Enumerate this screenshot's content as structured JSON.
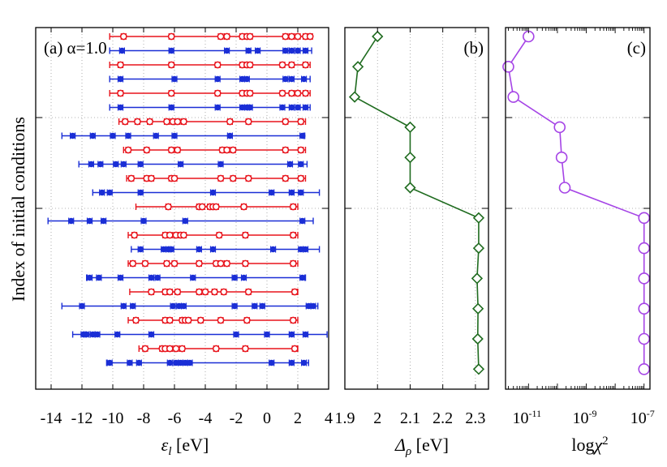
{
  "ylabel": "Index of initial conditions",
  "colors": {
    "red": "#e8141c",
    "blue": "#1a2ed6",
    "green": "#1f6b1f",
    "purple": "#a544e6"
  },
  "chart_data": [
    {
      "type": "scatter",
      "panel_label": "(a) α=1.0",
      "xlabel": "ε_l [eV]",
      "xlim": [
        -15,
        4
      ],
      "xticks": [
        -14,
        -12,
        -10,
        -8,
        -6,
        -4,
        -2,
        0,
        2,
        4
      ],
      "xtick_labels": [
        "-14",
        "-12",
        "-10",
        "-8",
        "-6",
        "-4",
        "-2",
        "0",
        "2",
        "4"
      ],
      "grid": true,
      "series": [
        {
          "color": "red",
          "marker": "open-circle",
          "rows": [
            {
              "index": 1,
              "center_values": [
                -9.3,
                -6.2,
                -3,
                -2.6,
                -1.6,
                -1.3,
                -1.1,
                1.2,
                1.6,
                2.0,
                2.5,
                2.8
              ],
              "min": -10.2,
              "max": 2.9
            },
            {
              "index": 3,
              "center_values": [
                -9.5,
                -6.2,
                -3.2,
                -1.6,
                -1.3,
                -1.1,
                1.0,
                1.6,
                2.5
              ],
              "min": -10.2,
              "max": 2.8
            },
            {
              "index": 5,
              "center_values": [
                -9.5,
                -6.2,
                -3.2,
                -1.6,
                -1.3,
                -1.1,
                1.0,
                1.6,
                2.0,
                2.5
              ],
              "min": -10.2,
              "max": 2.8
            },
            {
              "index": 7,
              "center_values": [
                -9.2,
                -8.4,
                -7.6,
                -6.5,
                -6.1,
                -5.8,
                -5.4,
                -2.4,
                -1.2,
                1.2,
                2.2
              ],
              "min": -9.6,
              "max": 2.5
            },
            {
              "index": 9,
              "center_values": [
                -9.0,
                -7.8,
                -6.2,
                -5.8,
                -2.9,
                -2.6,
                -2.2,
                1.2,
                2.2
              ],
              "min": -9.3,
              "max": 2.5
            },
            {
              "index": 11,
              "center_values": [
                -8.8,
                -7.8,
                -7.5,
                -6.2,
                -6.0,
                -3.0,
                -2.2,
                -1.2,
                1.2,
                2.2
              ],
              "min": -9.1,
              "max": 2.5
            },
            {
              "index": 13,
              "center_values": [
                -6.4,
                -4.4,
                -4.2,
                -3.7,
                -3.5,
                -3.3,
                -1.5,
                1.7
              ],
              "min": -8.5,
              "max": 2.0
            },
            {
              "index": 15,
              "center_values": [
                -8.6,
                -6.6,
                -6.3,
                -5.9,
                -5.6,
                -5.4,
                -3.1,
                -1.4,
                1.7
              ],
              "min": -9.0,
              "max": 2.0
            },
            {
              "index": 17,
              "center_values": [
                -8.7,
                -7.9,
                -6.5,
                -6.0,
                -4.4,
                -3.3,
                -3.0,
                -2.6,
                -1.4,
                1.7
              ],
              "min": -9.0,
              "max": 2.0
            },
            {
              "index": 19,
              "center_values": [
                -7.5,
                -6.6,
                -6.3,
                -5.8,
                -4.4,
                -4.0,
                -3.4,
                -2.8,
                -1.2,
                1.8
              ],
              "min": -8.9,
              "max": 2.0
            },
            {
              "index": 21,
              "center_values": [
                -8.5,
                -6.6,
                -6.3,
                -5.5,
                -5.3,
                -5.1,
                -4.3,
                -3.0,
                -1.3,
                1.7
              ],
              "min": -9.0,
              "max": 2.0
            },
            {
              "index": 23,
              "center_values": [
                -7.9,
                -6.8,
                -6.6,
                -6.3,
                -5.9,
                -5.5,
                -3.3,
                -1.4,
                1.8
              ],
              "min": -8.3,
              "max": 2.0
            }
          ]
        },
        {
          "color": "blue",
          "marker": "filled-circle",
          "rows": [
            {
              "index": 2,
              "center_values": [
                -9.4,
                -6.2,
                -2.6,
                -1.2,
                -0.6,
                1.2,
                1.6,
                2.0,
                2.5
              ],
              "min": -10.2,
              "max": 2.9
            },
            {
              "index": 4,
              "center_values": [
                -9.5,
                -6.0,
                -3.2,
                -1.6,
                -1.3,
                1.2,
                1.6,
                2.4
              ],
              "min": -10.2,
              "max": 2.8
            },
            {
              "index": 6,
              "center_values": [
                -9.5,
                -6.2,
                -3.2,
                -1.6,
                -1.3,
                -1.1,
                1.0,
                1.6,
                2.0,
                2.5
              ],
              "min": -10.2,
              "max": 2.8
            },
            {
              "index": 8,
              "center_values": [
                -12.6,
                -11.3,
                -10.0,
                -9.0,
                -7.2,
                -6.0,
                -2.4,
                2.3
              ],
              "min": -13.3,
              "max": 2.4
            },
            {
              "index": 10,
              "center_values": [
                -11.4,
                -10.8,
                -9.8,
                -9.3,
                -8.2,
                -5.6,
                -3.0,
                1.5,
                2.2
              ],
              "min": -12.2,
              "max": 2.6
            },
            {
              "index": 12,
              "center_values": [
                -10.7,
                -10.2,
                -8.2,
                -3.5,
                0.3,
                1.6,
                2.2
              ],
              "min": -11.3,
              "max": 3.4
            },
            {
              "index": 14,
              "center_values": [
                -12.7,
                -11.5,
                -10.6,
                -8.0,
                -5.3,
                2.3
              ],
              "min": -14.2,
              "max": 3.0
            },
            {
              "index": 16,
              "center_values": [
                -8.2,
                -6.7,
                -6.4,
                -6.2,
                -4.4,
                -3.5,
                0.4,
                2.2,
                2.5
              ],
              "min": -8.8,
              "max": 3.4
            },
            {
              "index": 18,
              "center_values": [
                -11.5,
                -10.9,
                -9.5,
                -7.5,
                -7.1,
                -4.8,
                -2.1,
                -1.5,
                2.3
              ],
              "min": -11.7,
              "max": 2.5
            },
            {
              "index": 20,
              "center_values": [
                -12.0,
                -9.3,
                -8.7,
                -6.1,
                -5.7,
                -5.4,
                -2.1,
                -0.8,
                -0.3,
                2.7,
                3.0
              ],
              "min": -13.3,
              "max": 3.3
            },
            {
              "index": 22,
              "center_values": [
                -11.9,
                -11.7,
                -11.3,
                -11.0,
                -9.7,
                -7.5,
                -2.0,
                0.0,
                1.6,
                2.5
              ],
              "min": -12.6,
              "max": 3.9
            },
            {
              "index": 24,
              "center_values": [
                -10.2,
                -8.9,
                -8.3,
                -6.3,
                -5.9,
                -5.6,
                -5.3,
                -5.0,
                0.3,
                1.6,
                2.4
              ],
              "min": -10.4,
              "max": 2.7
            }
          ]
        }
      ]
    },
    {
      "type": "line",
      "panel_label": "(b)",
      "xlabel": "Δ_ρ [eV]",
      "xlim": [
        1.9,
        2.34
      ],
      "xticks": [
        1.9,
        2.0,
        2.1,
        2.2,
        2.3
      ],
      "xtick_labels": [
        "1.9",
        "2",
        "2.1",
        "2.2",
        "2.3"
      ],
      "marker": "open-diamond",
      "color": "green",
      "points": [
        {
          "index": 1,
          "value": 2.0
        },
        {
          "index": 2,
          "value": 1.94
        },
        {
          "index": 3,
          "value": 1.93
        },
        {
          "index": 4,
          "value": 2.1
        },
        {
          "index": 5,
          "value": 2.1
        },
        {
          "index": 6,
          "value": 2.1
        },
        {
          "index": 7,
          "value": 2.31
        },
        {
          "index": 8,
          "value": 2.31
        },
        {
          "index": 9,
          "value": 2.305
        },
        {
          "index": 10,
          "value": 2.308
        },
        {
          "index": 11,
          "value": 2.307
        },
        {
          "index": 12,
          "value": 2.31
        }
      ]
    },
    {
      "type": "line",
      "panel_label": "(c)",
      "xlabel": "logχ²",
      "xscale": "log",
      "xlim": [
        1.6e-12,
        1.6e-07
      ],
      "xticks": [
        1e-11,
        1e-09,
        1e-07
      ],
      "xtick_labels": [
        {
          "base": "10",
          "exp": "-11"
        },
        {
          "base": "10",
          "exp": "-9"
        },
        {
          "base": "10",
          "exp": "-7"
        }
      ],
      "marker": "open-circle",
      "color": "purple",
      "points": [
        {
          "index": 1,
          "value": 1e-11
        },
        {
          "index": 2,
          "value": 2e-12
        },
        {
          "index": 3,
          "value": 3e-12
        },
        {
          "index": 4,
          "value": 1.2e-10
        },
        {
          "index": 5,
          "value": 1.4e-10
        },
        {
          "index": 6,
          "value": 1.8e-10
        },
        {
          "index": 7,
          "value": 1e-07
        },
        {
          "index": 8,
          "value": 1e-07
        },
        {
          "index": 9,
          "value": 1e-07
        },
        {
          "index": 10,
          "value": 1e-07
        },
        {
          "index": 11,
          "value": 1e-07
        },
        {
          "index": 12,
          "value": 1e-07
        }
      ]
    }
  ]
}
